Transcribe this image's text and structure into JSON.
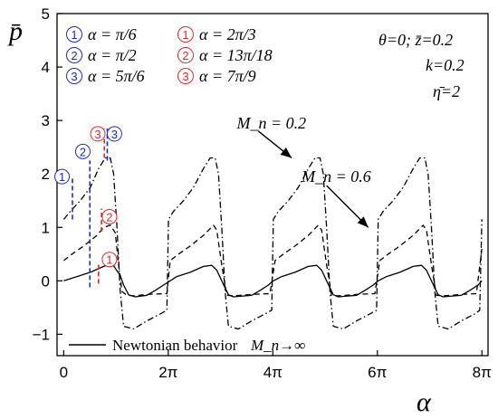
{
  "chart_data": {
    "type": "line",
    "xlabel": "α",
    "ylabel": "p̄",
    "xlim": [
      -0.4,
      25.5
    ],
    "ylim": [
      -1.4,
      5
    ],
    "xticks": [
      {
        "value": 0,
        "label": "0"
      },
      {
        "value": 6.2832,
        "label": "2π"
      },
      {
        "value": 12.5664,
        "label": "4π"
      },
      {
        "value": 18.8496,
        "label": "6π"
      },
      {
        "value": 25.1327,
        "label": "8π"
      }
    ],
    "yticks": [
      {
        "value": -1,
        "label": "−1"
      },
      {
        "value": 0,
        "label": "0"
      },
      {
        "value": 1,
        "label": "1"
      },
      {
        "value": 2,
        "label": "2"
      },
      {
        "value": 3,
        "label": "3"
      },
      {
        "value": 4,
        "label": "4"
      },
      {
        "value": 5,
        "label": "5"
      }
    ],
    "params": {
      "line1": "θ=0; z̄=0.2",
      "line2": "k=0.2",
      "line3": "η̄=2"
    },
    "legend_blue": [
      {
        "num": "1",
        "text": "α = π/6"
      },
      {
        "num": "2",
        "text": "α = π/2"
      },
      {
        "num": "3",
        "text": "α = 5π/6"
      }
    ],
    "legend_red": [
      {
        "num": "1",
        "text": "α = 2π/3"
      },
      {
        "num": "2",
        "text": "α = 13π/18"
      },
      {
        "num": "3",
        "text": "α = 7π/9"
      }
    ],
    "series": [
      {
        "name": "Newtonian behavior M_n→∞",
        "style": "solid",
        "x": [
          0,
          0.8,
          1.6,
          2.4,
          2.6,
          3.0,
          3.4,
          3.6,
          3.9,
          4.3,
          5.0,
          5.5,
          6.0,
          6.4,
          6.8,
          7.6,
          8.4,
          8.9,
          9.2,
          9.5,
          9.9,
          10.2,
          10.6,
          11.3,
          11.8,
          12.3,
          12.6,
          13.1,
          13.9,
          14.7,
          15.2,
          15.5,
          15.8,
          16.2,
          16.5,
          16.9,
          17.6,
          18.1,
          18.6,
          18.9,
          19.4,
          20.2,
          21.0,
          21.5,
          21.8,
          22.1,
          22.5,
          22.8,
          23.2,
          23.9,
          24.4,
          24.9,
          25.13
        ],
        "y": [
          0,
          0.08,
          0.16,
          0.27,
          0.29,
          0.28,
          0.1,
          -0.08,
          -0.26,
          -0.3,
          -0.27,
          -0.18,
          -0.08,
          0.0,
          0.08,
          0.16,
          0.27,
          0.29,
          0.2,
          0.0,
          -0.26,
          -0.3,
          -0.29,
          -0.27,
          -0.18,
          -0.08,
          0.0,
          0.08,
          0.16,
          0.27,
          0.29,
          0.2,
          0.0,
          -0.26,
          -0.3,
          -0.29,
          -0.27,
          -0.18,
          -0.08,
          0.0,
          0.08,
          0.16,
          0.27,
          0.29,
          0.2,
          0.0,
          -0.26,
          -0.3,
          -0.29,
          -0.27,
          -0.18,
          -0.08,
          0.0
        ]
      },
      {
        "name": "M_n = 0.6",
        "style": "dash",
        "x": [
          0,
          0.5,
          1.2,
          2.0,
          2.4,
          2.8,
          3.1,
          3.3,
          3.5,
          3.8,
          4.2,
          5.2,
          6.2,
          6.4,
          6.9,
          7.6,
          8.4,
          9.0,
          9.2,
          9.5,
          9.8,
          10.2,
          11.5,
          12.4,
          12.7,
          13.2,
          13.9,
          14.7,
          15.3,
          15.5,
          15.8,
          16.1,
          16.5,
          17.8,
          18.7,
          19.0,
          19.5,
          20.2,
          21.0,
          21.6,
          21.8,
          22.1,
          22.4,
          22.8,
          24.1,
          24.8,
          25.13
        ],
        "y": [
          0.38,
          0.5,
          0.65,
          0.85,
          1.0,
          1.04,
          0.9,
          0.3,
          -0.2,
          -0.27,
          -0.28,
          -0.25,
          -0.24,
          0.38,
          0.5,
          0.65,
          0.85,
          1.04,
          0.95,
          0.3,
          -0.27,
          -0.28,
          -0.25,
          -0.24,
          0.38,
          0.5,
          0.65,
          0.85,
          1.04,
          0.95,
          0.3,
          -0.27,
          -0.28,
          -0.25,
          -0.24,
          0.38,
          0.5,
          0.65,
          0.85,
          1.04,
          0.95,
          0.3,
          -0.27,
          -0.28,
          -0.25,
          -0.24,
          0.6
        ]
      },
      {
        "name": "M_n = 0.2",
        "style": "dashdot",
        "x": [
          0,
          0.4,
          1.0,
          1.6,
          2.1,
          2.5,
          2.8,
          3.0,
          3.2,
          3.4,
          3.6,
          4.2,
          5.0,
          5.8,
          6.2,
          6.3,
          6.6,
          7.2,
          7.8,
          8.4,
          8.8,
          9.1,
          9.3,
          9.5,
          9.7,
          9.9,
          10.5,
          11.3,
          12.1,
          12.5,
          12.6,
          12.9,
          13.5,
          14.1,
          14.7,
          15.1,
          15.4,
          15.6,
          15.8,
          16.0,
          16.2,
          16.8,
          17.6,
          18.4,
          18.8,
          18.9,
          19.2,
          19.8,
          20.4,
          21.0,
          21.4,
          21.7,
          21.9,
          22.1,
          22.3,
          22.5,
          23.1,
          23.9,
          24.7,
          25.0,
          25.13
        ],
        "y": [
          1.15,
          1.3,
          1.5,
          1.75,
          2.1,
          2.3,
          2.3,
          2.0,
          1.0,
          -0.2,
          -0.85,
          -0.9,
          -0.75,
          -0.62,
          -0.55,
          1.15,
          1.3,
          1.5,
          1.75,
          2.1,
          2.3,
          2.3,
          2.0,
          1.0,
          -0.2,
          -0.85,
          -0.9,
          -0.75,
          -0.62,
          -0.55,
          1.15,
          1.3,
          1.5,
          1.75,
          2.1,
          2.3,
          2.3,
          2.0,
          1.0,
          -0.2,
          -0.85,
          -0.9,
          -0.75,
          -0.62,
          -0.55,
          1.15,
          1.3,
          1.5,
          1.75,
          2.1,
          2.3,
          2.3,
          2.0,
          1.0,
          -0.2,
          -0.85,
          -0.9,
          -0.75,
          -0.62,
          -0.55,
          1.15
        ]
      }
    ],
    "markers": [
      {
        "label": "1",
        "color": "#1a2bd6",
        "x": 0.5236,
        "y1": 1.15,
        "y2": 1.95,
        "lx": -0.1,
        "ly": 1.95
      },
      {
        "label": "2",
        "color": "#1a2bd6",
        "x": 1.5708,
        "y1": -0.12,
        "y2": 2.25,
        "lx": 1.15,
        "ly": 2.42
      },
      {
        "label": "3",
        "color": "#1a2bd6",
        "x": 2.618,
        "y1": 2.25,
        "y2": 2.85,
        "lx": 3.05,
        "ly": 2.75
      },
      {
        "label": "1",
        "color": "#e0292b",
        "x": 2.0944,
        "y1": -0.05,
        "y2": 0.3,
        "lx": 2.75,
        "ly": 0.4
      },
      {
        "label": "2",
        "color": "#e0292b",
        "x": 2.2689,
        "y1": 0.92,
        "y2": 1.35,
        "lx": 2.75,
        "ly": 1.2
      },
      {
        "label": "3",
        "color": "#e0292b",
        "x": 2.4435,
        "y1": 2.3,
        "y2": 2.85,
        "lx": 2.05,
        "ly": 2.75
      }
    ],
    "annotations": [
      {
        "text": "M_n = 0.2",
        "tx": 10.4,
        "ty": 2.85,
        "ax1": 11.7,
        "ay1": 2.8,
        "ax2": 13.7,
        "ay2": 2.3
      },
      {
        "text": "M_n = 0.6",
        "tx": 14.3,
        "ty": 1.85,
        "ax1": 15.8,
        "ay1": 1.78,
        "ax2": 18.3,
        "ay2": 1.0
      }
    ],
    "legend_line": {
      "text": "Newtonian behavior",
      "math": "M_n→∞"
    },
    "colors": {
      "blue": "#1a2bd6",
      "red": "#e0292b",
      "ink": "#000000"
    }
  }
}
